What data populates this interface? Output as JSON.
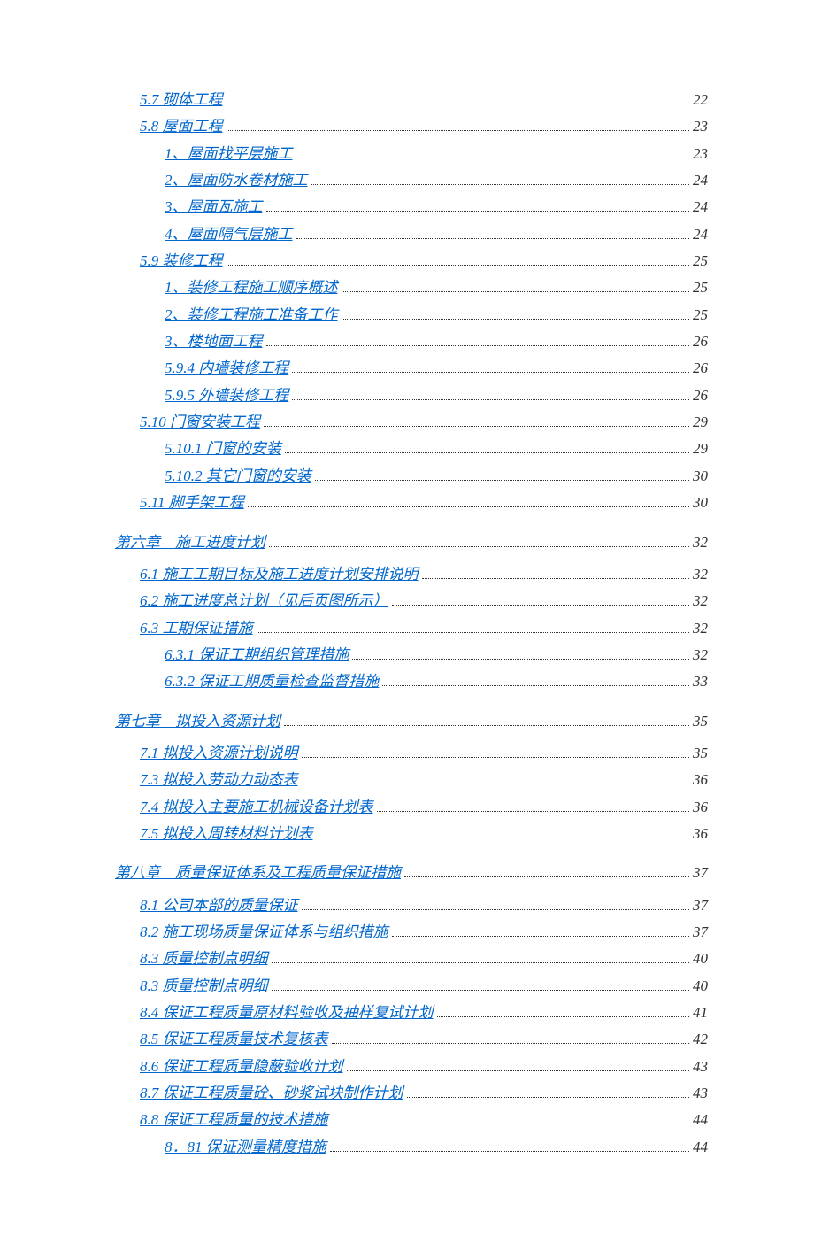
{
  "colors": {
    "link": "#0066cc",
    "page_num": "#333333",
    "dot_leader": "#333333",
    "background": "#ffffff"
  },
  "typography": {
    "font_family": "SimSun",
    "font_size_pt": 13,
    "font_style": "italic",
    "line_height": 1.55
  },
  "toc": [
    {
      "label": "5.7 砌体工程",
      "page": "22",
      "level": 1,
      "gap": ""
    },
    {
      "label": "5.8 屋面工程",
      "page": "23",
      "level": 1,
      "gap": ""
    },
    {
      "label": "1、屋面找平层施工",
      "page": "23",
      "level": 2,
      "gap": ""
    },
    {
      "label": "2、屋面防水卷材施工",
      "page": "24",
      "level": 2,
      "gap": ""
    },
    {
      "label": "3、屋面瓦施工",
      "page": "24",
      "level": 2,
      "gap": ""
    },
    {
      "label": "4、屋面隔气层施工",
      "page": "24",
      "level": 2,
      "gap": ""
    },
    {
      "label": "5.9 装修工程",
      "page": "25",
      "level": 1,
      "gap": ""
    },
    {
      "label": "1、装修工程施工顺序概述",
      "page": "25",
      "level": 2,
      "gap": ""
    },
    {
      "label": "2、装修工程施工准备工作",
      "page": "25",
      "level": 2,
      "gap": ""
    },
    {
      "label": "3、楼地面工程",
      "page": "26",
      "level": 2,
      "gap": ""
    },
    {
      "label": "5.9.4 内墙装修工程",
      "page": "26",
      "level": 2,
      "gap": ""
    },
    {
      "label": "5.9.5 外墙装修工程",
      "page": "26",
      "level": 2,
      "gap": ""
    },
    {
      "label": "5.10 门窗安装工程",
      "page": "29",
      "level": 1,
      "gap": ""
    },
    {
      "label": "5.10.1 门窗的安装",
      "page": "29",
      "level": 2,
      "gap": ""
    },
    {
      "label": "5.10.2 其它门窗的安装",
      "page": "30",
      "level": 2,
      "gap": ""
    },
    {
      "label": "5.11 脚手架工程",
      "page": "30",
      "level": 1,
      "gap": ""
    },
    {
      "label": "第六章　施工进度计划",
      "page": "32",
      "level": 0,
      "gap": "chapter-gap"
    },
    {
      "label": "6.1 施工工期目标及施工进度计划安排说明",
      "page": "32",
      "level": 1,
      "gap": "section-gap"
    },
    {
      "label": "6.2 施工进度总计划（见后页图所示）",
      "page": "32",
      "level": 1,
      "gap": ""
    },
    {
      "label": "6.3 工期保证措施",
      "page": "32",
      "level": 1,
      "gap": ""
    },
    {
      "label": "6.3.1 保证工期组织管理措施",
      "page": "32",
      "level": 2,
      "gap": ""
    },
    {
      "label": "6.3.2 保证工期质量检查监督措施",
      "page": "33",
      "level": 2,
      "gap": ""
    },
    {
      "label": "第七章　拟投入资源计划",
      "page": "35",
      "level": 0,
      "gap": "chapter-gap"
    },
    {
      "label": "7.1 拟投入资源计划说明",
      "page": "35",
      "level": 1,
      "gap": "section-gap"
    },
    {
      "label": "7.3 拟投入劳动力动态表",
      "page": "36",
      "level": 1,
      "gap": ""
    },
    {
      "label": "7.4 拟投入主要施工机械设备计划表",
      "page": "36",
      "level": 1,
      "gap": ""
    },
    {
      "label": "7.5 拟投入周转材料计划表",
      "page": "36",
      "level": 1,
      "gap": ""
    },
    {
      "label": "第八章　质量保证体系及工程质量保证措施",
      "page": "37",
      "level": 0,
      "gap": "chapter-gap"
    },
    {
      "label": "8.1 公司本部的质量保证",
      "page": "37",
      "level": 1,
      "gap": "section-gap"
    },
    {
      "label": "8.2 施工现场质量保证体系与组织措施",
      "page": "37",
      "level": 1,
      "gap": ""
    },
    {
      "label": "8.3 质量控制点明细",
      "page": "40",
      "level": 1,
      "gap": ""
    },
    {
      "label": "8.3 质量控制点明细",
      "page": "40",
      "level": 1,
      "gap": ""
    },
    {
      "label": "8.4 保证工程质量原材料验收及抽样复试计划",
      "page": "41",
      "level": 1,
      "gap": ""
    },
    {
      "label": "8.5 保证工程质量技术复核表",
      "page": "42",
      "level": 1,
      "gap": ""
    },
    {
      "label": "8.6 保证工程质量隐蔽验收计划",
      "page": "43",
      "level": 1,
      "gap": ""
    },
    {
      "label": "8.7 保证工程质量砼、砂浆试块制作计划",
      "page": "43",
      "level": 1,
      "gap": ""
    },
    {
      "label": "8.8 保证工程质量的技术措施",
      "page": "44",
      "level": 1,
      "gap": ""
    },
    {
      "label": "8．81 保证测量精度措施",
      "page": "44",
      "level": 2,
      "gap": ""
    }
  ]
}
